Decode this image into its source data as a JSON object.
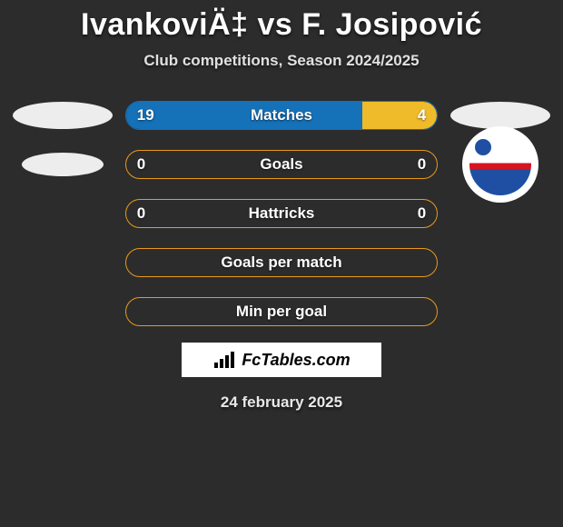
{
  "title": "IvankoviÄ‡ vs F. Josipović",
  "subtitle": "Club competitions, Season 2024/2025",
  "footer_logo_text": "FcTables.com",
  "footer_date": "24 february 2025",
  "colors": {
    "left_fill": "#1571b8",
    "right_fill": "#f0bb2a",
    "border_blue": "#1571b8",
    "border_orange": "#e99a1a",
    "background": "#2c2c2c"
  },
  "stats": [
    {
      "label": "Matches",
      "left_value": "19",
      "right_value": "4",
      "left_pct": 76,
      "right_pct": 24,
      "border_color": "#1571b8",
      "show_fill": true,
      "show_values": true
    },
    {
      "label": "Goals",
      "left_value": "0",
      "right_value": "0",
      "left_pct": 0,
      "right_pct": 0,
      "border_color": "#e99a1a",
      "show_fill": false,
      "show_values": true
    },
    {
      "label": "Hattricks",
      "left_value": "0",
      "right_value": "0",
      "left_pct": 0,
      "right_pct": 0,
      "border_color": "#e99a1a",
      "show_fill": false,
      "show_values": true
    },
    {
      "label": "Goals per match",
      "left_value": "",
      "right_value": "",
      "left_pct": 0,
      "right_pct": 0,
      "border_color": "#e99a1a",
      "show_fill": false,
      "show_values": false
    },
    {
      "label": "Min per goal",
      "left_value": "",
      "right_value": "",
      "left_pct": 0,
      "right_pct": 0,
      "border_color": "#e99a1a",
      "show_fill": false,
      "show_values": false
    }
  ]
}
